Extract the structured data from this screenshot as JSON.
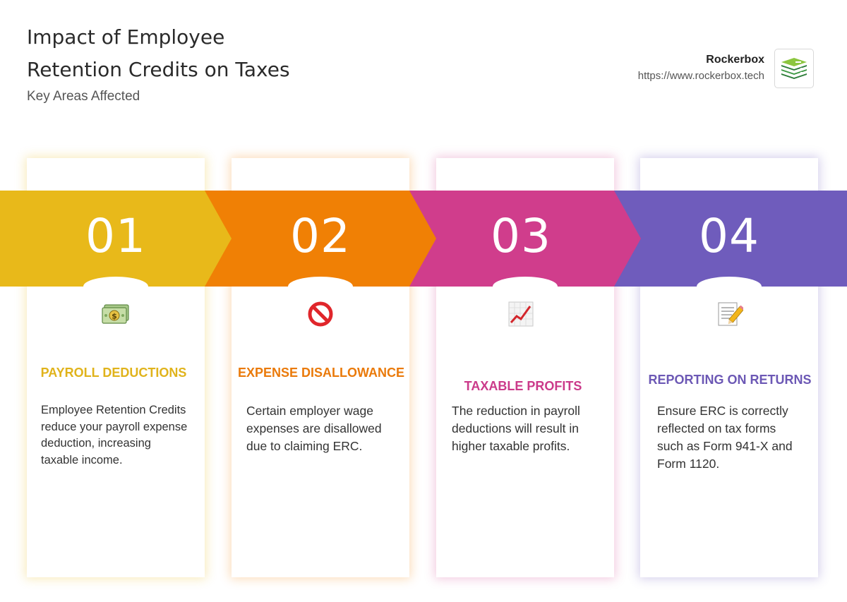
{
  "header": {
    "title": "Impact of Employee Retention Credits on Taxes",
    "subtitle": "Key Areas Affected"
  },
  "brand": {
    "name": "Rockerbox",
    "url": "https://www.rockerbox.tech",
    "logo_icon": "rockerbox-stack-logo"
  },
  "colors": {
    "step1": "#e8b91a",
    "step2": "#f08005",
    "step3": "#d03d8c",
    "step4": "#6f5cbc"
  },
  "steps": [
    {
      "number": "01",
      "icon": "money-bills-icon",
      "title": "PAYROLL DEDUCTIONS",
      "body": "Employee Retention Credits reduce your payroll expense deduction, increasing taxable income."
    },
    {
      "number": "02",
      "icon": "prohibited-icon",
      "title": "EXPENSE DISALLOWANCE",
      "body": "Certain employer wage expenses are disallowed due to claiming ERC."
    },
    {
      "number": "03",
      "icon": "chart-increasing-icon",
      "title": "TAXABLE PROFITS",
      "body": "The reduction in payroll deductions will result in higher taxable profits."
    },
    {
      "number": "04",
      "icon": "memo-icon",
      "title": "REPORTING ON RETURNS",
      "body": "Ensure ERC is correctly reflected on tax forms such as Form 941-X and Form 1120."
    }
  ]
}
